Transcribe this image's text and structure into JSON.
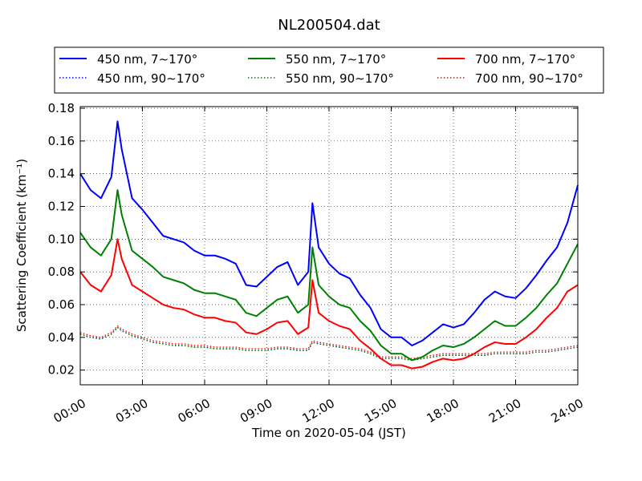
{
  "chart_data": {
    "type": "line",
    "title": "NL200504.dat",
    "xlabel": "Time on 2020-05-04 (JST)",
    "ylabel": "Scattering Coefficient (km⁻¹)",
    "xlim": [
      0,
      24
    ],
    "ylim": [
      0.011,
      0.181
    ],
    "grid": true,
    "legend_position": "top",
    "x_ticks": [
      "00:00",
      "03:00",
      "06:00",
      "09:00",
      "12:00",
      "15:00",
      "18:00",
      "21:00",
      "24:00"
    ],
    "y_ticks": [
      "0.02",
      "0.04",
      "0.06",
      "0.08",
      "0.10",
      "0.12",
      "0.14",
      "0.16",
      "0.18"
    ],
    "x_tick_values": [
      0,
      3,
      6,
      9,
      12,
      15,
      18,
      21,
      24
    ],
    "y_tick_values": [
      0.02,
      0.04,
      0.06,
      0.08,
      0.1,
      0.12,
      0.14,
      0.16,
      0.18
    ],
    "x": [
      0.0,
      0.5,
      1.0,
      1.5,
      1.8,
      2.0,
      2.5,
      3.0,
      3.5,
      4.0,
      4.5,
      5.0,
      5.5,
      6.0,
      6.5,
      7.0,
      7.5,
      8.0,
      8.5,
      9.0,
      9.5,
      10.0,
      10.5,
      11.0,
      11.2,
      11.5,
      12.0,
      12.5,
      13.0,
      13.5,
      14.0,
      14.5,
      15.0,
      15.5,
      16.0,
      16.5,
      17.0,
      17.5,
      18.0,
      18.5,
      19.0,
      19.5,
      20.0,
      20.5,
      21.0,
      21.5,
      22.0,
      22.5,
      23.0,
      23.5,
      24.0
    ],
    "series": [
      {
        "name": "450 nm, 7∼170°",
        "color": "#0000ff",
        "style": "solid",
        "values": [
          0.14,
          0.13,
          0.125,
          0.138,
          0.172,
          0.155,
          0.125,
          0.118,
          0.11,
          0.102,
          0.1,
          0.098,
          0.093,
          0.09,
          0.09,
          0.088,
          0.085,
          0.072,
          0.071,
          0.077,
          0.083,
          0.086,
          0.072,
          0.08,
          0.122,
          0.095,
          0.085,
          0.079,
          0.076,
          0.066,
          0.058,
          0.045,
          0.04,
          0.04,
          0.035,
          0.038,
          0.043,
          0.048,
          0.046,
          0.048,
          0.055,
          0.063,
          0.068,
          0.065,
          0.064,
          0.07,
          0.078,
          0.087,
          0.095,
          0.11,
          0.133
        ]
      },
      {
        "name": "450 nm, 90∼170°",
        "color": "#0000ff",
        "style": "dotted",
        "values": [
          0.042,
          0.04,
          0.039,
          0.042,
          0.046,
          0.044,
          0.041,
          0.039,
          0.037,
          0.036,
          0.035,
          0.035,
          0.034,
          0.034,
          0.033,
          0.033,
          0.033,
          0.032,
          0.032,
          0.032,
          0.033,
          0.033,
          0.032,
          0.032,
          0.037,
          0.036,
          0.035,
          0.034,
          0.033,
          0.032,
          0.03,
          0.027,
          0.027,
          0.027,
          0.026,
          0.027,
          0.028,
          0.029,
          0.029,
          0.029,
          0.029,
          0.029,
          0.03,
          0.03,
          0.03,
          0.03,
          0.031,
          0.031,
          0.032,
          0.033,
          0.034
        ]
      },
      {
        "name": "550 nm, 7∼170°",
        "color": "#008000",
        "style": "solid",
        "values": [
          0.104,
          0.095,
          0.09,
          0.1,
          0.13,
          0.115,
          0.093,
          0.088,
          0.083,
          0.077,
          0.075,
          0.073,
          0.069,
          0.067,
          0.067,
          0.065,
          0.063,
          0.055,
          0.053,
          0.058,
          0.063,
          0.065,
          0.055,
          0.06,
          0.095,
          0.072,
          0.065,
          0.06,
          0.058,
          0.05,
          0.044,
          0.035,
          0.03,
          0.03,
          0.026,
          0.028,
          0.032,
          0.035,
          0.034,
          0.036,
          0.04,
          0.045,
          0.05,
          0.047,
          0.047,
          0.052,
          0.058,
          0.066,
          0.073,
          0.085,
          0.097
        ]
      },
      {
        "name": "550 nm, 90∼170°",
        "color": "#008000",
        "style": "dotted",
        "values": [
          0.042,
          0.04,
          0.039,
          0.042,
          0.046,
          0.044,
          0.041,
          0.039,
          0.037,
          0.036,
          0.035,
          0.035,
          0.034,
          0.034,
          0.033,
          0.033,
          0.033,
          0.032,
          0.032,
          0.032,
          0.033,
          0.033,
          0.032,
          0.032,
          0.037,
          0.036,
          0.035,
          0.034,
          0.033,
          0.032,
          0.03,
          0.027,
          0.027,
          0.027,
          0.026,
          0.027,
          0.028,
          0.029,
          0.029,
          0.029,
          0.029,
          0.029,
          0.03,
          0.03,
          0.03,
          0.03,
          0.031,
          0.031,
          0.032,
          0.033,
          0.034
        ]
      },
      {
        "name": "700 nm, 7∼170°",
        "color": "#ff0000",
        "style": "solid",
        "values": [
          0.08,
          0.072,
          0.068,
          0.078,
          0.1,
          0.088,
          0.072,
          0.068,
          0.064,
          0.06,
          0.058,
          0.057,
          0.054,
          0.052,
          0.052,
          0.05,
          0.049,
          0.043,
          0.042,
          0.045,
          0.049,
          0.05,
          0.042,
          0.046,
          0.075,
          0.055,
          0.05,
          0.047,
          0.045,
          0.038,
          0.033,
          0.027,
          0.023,
          0.023,
          0.021,
          0.022,
          0.025,
          0.027,
          0.026,
          0.027,
          0.03,
          0.034,
          0.037,
          0.036,
          0.036,
          0.04,
          0.045,
          0.052,
          0.058,
          0.068,
          0.072
        ]
      },
      {
        "name": "700 nm, 90∼170°",
        "color": "#ff0000",
        "style": "dotted",
        "values": [
          0.043,
          0.041,
          0.04,
          0.043,
          0.047,
          0.045,
          0.042,
          0.04,
          0.038,
          0.037,
          0.036,
          0.036,
          0.035,
          0.035,
          0.034,
          0.034,
          0.034,
          0.033,
          0.033,
          0.033,
          0.034,
          0.034,
          0.033,
          0.033,
          0.038,
          0.037,
          0.036,
          0.035,
          0.034,
          0.033,
          0.031,
          0.028,
          0.028,
          0.028,
          0.027,
          0.028,
          0.029,
          0.03,
          0.03,
          0.03,
          0.03,
          0.03,
          0.031,
          0.031,
          0.031,
          0.031,
          0.032,
          0.032,
          0.033,
          0.034,
          0.035
        ]
      }
    ]
  }
}
